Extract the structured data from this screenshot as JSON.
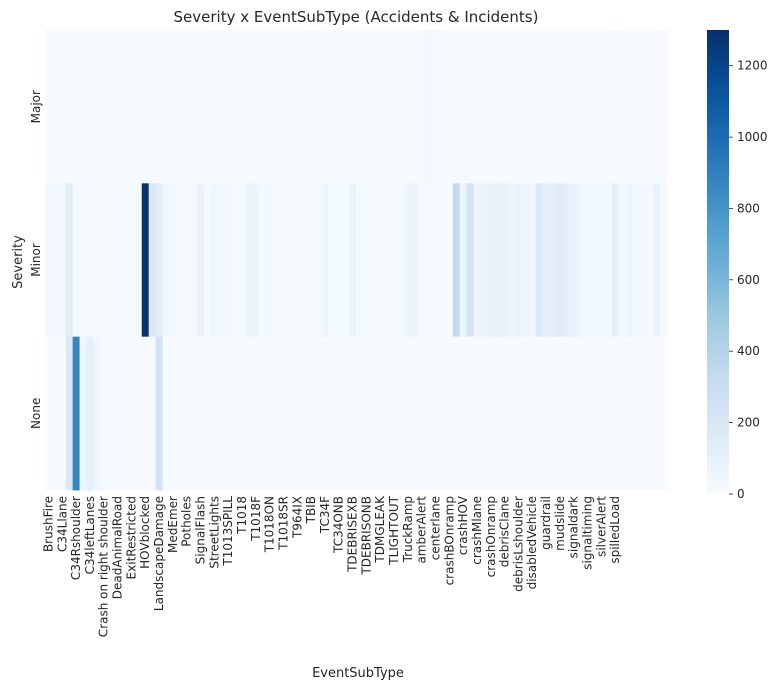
{
  "chart_data": {
    "type": "heatmap",
    "title": "Severity x EventSubType (Accidents & Incidents)",
    "xlabel": "EventSubType",
    "ylabel": "Severity",
    "rows": [
      "Major",
      "Minor",
      "None"
    ],
    "n_columns": 90,
    "x_tick_labels": [
      {
        "col": 0,
        "label": "BrushFire"
      },
      {
        "col": 2,
        "label": "C34Llane"
      },
      {
        "col": 4,
        "label": "C34Rshoulder"
      },
      {
        "col": 6,
        "label": "C34leftLanes"
      },
      {
        "col": 8,
        "label": "Crash on right shoulder"
      },
      {
        "col": 10,
        "label": "DeadAnimalRoad"
      },
      {
        "col": 12,
        "label": "ExitRestricted"
      },
      {
        "col": 14,
        "label": "HOVblocked"
      },
      {
        "col": 16,
        "label": "LandscapeDamage"
      },
      {
        "col": 18,
        "label": "MedEmer"
      },
      {
        "col": 20,
        "label": "Potholes"
      },
      {
        "col": 22,
        "label": "SignalFlash"
      },
      {
        "col": 24,
        "label": "StreetLights"
      },
      {
        "col": 26,
        "label": "T1013SPILL"
      },
      {
        "col": 28,
        "label": "T1018"
      },
      {
        "col": 30,
        "label": "T1018F"
      },
      {
        "col": 32,
        "label": "T1018ON"
      },
      {
        "col": 34,
        "label": "T1018SR"
      },
      {
        "col": 36,
        "label": "T964IX"
      },
      {
        "col": 38,
        "label": "TBIB"
      },
      {
        "col": 40,
        "label": "TC34F"
      },
      {
        "col": 42,
        "label": "TC34ONB"
      },
      {
        "col": 44,
        "label": "TDEBRISEXB"
      },
      {
        "col": 46,
        "label": "TDEBRISONB"
      },
      {
        "col": 48,
        "label": "TDMGLEAK"
      },
      {
        "col": 50,
        "label": "TLIGHTOUT"
      },
      {
        "col": 52,
        "label": "TruckRamp"
      },
      {
        "col": 54,
        "label": "amberAlert"
      },
      {
        "col": 56,
        "label": "centerlane"
      },
      {
        "col": 58,
        "label": "crashBOnramp"
      },
      {
        "col": 60,
        "label": "crashHOV"
      },
      {
        "col": 62,
        "label": "crashMlane"
      },
      {
        "col": 64,
        "label": "crashOnramp"
      },
      {
        "col": 66,
        "label": "debrisClane"
      },
      {
        "col": 68,
        "label": "debrisLshoulder"
      },
      {
        "col": 70,
        "label": "disabledVehicle"
      },
      {
        "col": 72,
        "label": "guardrail"
      },
      {
        "col": 74,
        "label": "mudslide"
      },
      {
        "col": 76,
        "label": "signaldark"
      },
      {
        "col": 78,
        "label": "signaltiming"
      },
      {
        "col": 80,
        "label": "silverAlert"
      },
      {
        "col": 82,
        "label": "spilledLoad"
      }
    ],
    "cells": {
      "Major": {
        "default": 6,
        "values": {
          "24": 10,
          "38": 12,
          "55": 45,
          "56": 18,
          "82": 12
        }
      },
      "Minor": {
        "default": 20,
        "values": {
          "1": 30,
          "2": 45,
          "3": 140,
          "8": 20,
          "10": 25,
          "14": 1300,
          "15": 200,
          "16": 120,
          "17": 50,
          "18": 35,
          "22": 90,
          "24": 60,
          "25": 40,
          "26": 30,
          "27": 25,
          "29": 70,
          "30": 75,
          "32": 35,
          "33": 20,
          "40": 60,
          "44": 80,
          "46": 20,
          "52": 70,
          "53": 80,
          "57": 5,
          "58": 5,
          "59": 330,
          "60": 70,
          "61": 230,
          "62": 60,
          "63": 80,
          "64": 90,
          "65": 110,
          "66": 100,
          "67": 60,
          "68": 80,
          "69": 60,
          "70": 50,
          "71": 170,
          "72": 110,
          "73": 130,
          "74": 150,
          "75": 120,
          "76": 100,
          "77": 60,
          "78": 30,
          "79": 50,
          "80": 40,
          "81": 30,
          "82": 120,
          "84": 60,
          "85": 40,
          "86": 30,
          "87": 20,
          "88": 90
        }
      },
      "None": {
        "default": 0,
        "values": {
          "3": 180,
          "4": 870,
          "5": 60,
          "6": 110,
          "7": 50,
          "8": 25,
          "9": 10,
          "10": 8,
          "11": 5,
          "12": 4,
          "13": 3,
          "16": 240,
          "17": 10,
          "55": 8,
          "56": 5,
          "72": 5,
          "80": 5
        }
      }
    },
    "colorbar": {
      "ticks": [
        0,
        200,
        400,
        600,
        800,
        1000,
        1200
      ],
      "range": [
        0,
        1300
      ],
      "colormap": "Blues",
      "color_low": "#f7fbff",
      "color_high": "#08306b"
    }
  }
}
